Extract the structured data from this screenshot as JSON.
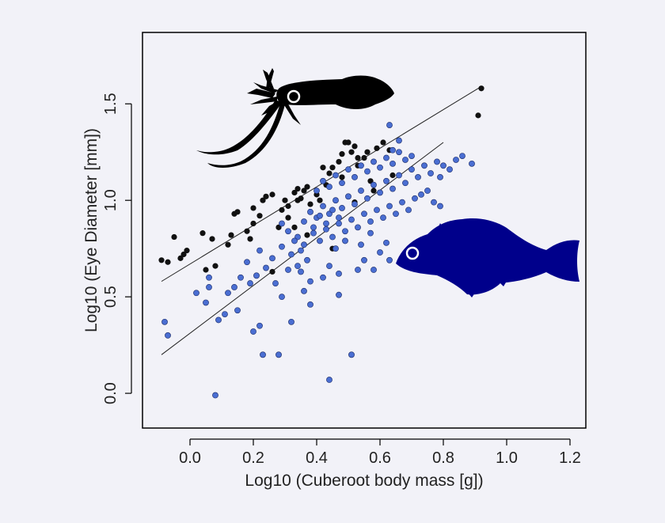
{
  "chart_data": {
    "type": "scatter",
    "xlabel": "Log10 (Cuberoot body mass [g])",
    "ylabel": "Log10 (Eye Diameter [mm])",
    "xlim": [
      -0.15,
      1.25
    ],
    "ylim": [
      -0.18,
      1.87
    ],
    "xticks": [
      0.0,
      0.2,
      0.4,
      0.6,
      0.8,
      1.0,
      1.2
    ],
    "xtick_labels": [
      "0.0",
      "0.2",
      "0.4",
      "0.6",
      "0.8",
      "1.0",
      "1.2"
    ],
    "yticks": [
      0.0,
      0.5,
      1.0,
      1.5
    ],
    "ytick_labels": [
      "0.0",
      "0.5",
      "1.0",
      "1.5"
    ],
    "grid": false,
    "series": [
      {
        "color": "#111111",
        "points": [
          [
            -0.09,
            0.69
          ],
          [
            -0.07,
            0.68
          ],
          [
            -0.05,
            0.81
          ],
          [
            -0.03,
            0.7
          ],
          [
            -0.02,
            0.72
          ],
          [
            -0.01,
            0.74
          ],
          [
            0.04,
            0.83
          ],
          [
            0.05,
            0.64
          ],
          [
            0.07,
            0.8
          ],
          [
            0.08,
            0.66
          ],
          [
            0.13,
            0.82
          ],
          [
            0.14,
            0.93
          ],
          [
            0.15,
            0.94
          ],
          [
            0.18,
            0.84
          ],
          [
            0.19,
            0.8
          ],
          [
            0.2,
            0.88
          ],
          [
            0.2,
            0.96
          ],
          [
            0.22,
            0.92
          ],
          [
            0.23,
            1.0
          ],
          [
            0.24,
            1.02
          ],
          [
            0.26,
            1.03
          ],
          [
            0.28,
            0.86
          ],
          [
            0.29,
            0.95
          ],
          [
            0.3,
            1.0
          ],
          [
            0.31,
            0.91
          ],
          [
            0.33,
            1.04
          ],
          [
            0.34,
            1.06
          ],
          [
            0.35,
            1.01
          ],
          [
            0.36,
            1.05
          ],
          [
            0.37,
            1.07
          ],
          [
            0.38,
            0.98
          ],
          [
            0.4,
            1.03
          ],
          [
            0.41,
            1.0
          ],
          [
            0.43,
            1.08
          ],
          [
            0.44,
            1.14
          ],
          [
            0.45,
            1.17
          ],
          [
            0.47,
            1.2
          ],
          [
            0.48,
            1.12
          ],
          [
            0.49,
            1.3
          ],
          [
            0.5,
            1.3
          ],
          [
            0.51,
            1.25
          ],
          [
            0.52,
            1.28
          ],
          [
            0.53,
            1.18
          ],
          [
            0.55,
            1.22
          ],
          [
            0.56,
            1.25
          ],
          [
            0.57,
            1.1
          ],
          [
            0.59,
            1.27
          ],
          [
            0.61,
            1.3
          ],
          [
            0.63,
            1.26
          ],
          [
            0.64,
            1.13
          ],
          [
            0.26,
            0.63
          ],
          [
            0.33,
            0.86
          ],
          [
            0.37,
            0.82
          ],
          [
            0.45,
            0.75
          ],
          [
            0.52,
            0.99
          ],
          [
            0.91,
            1.44
          ],
          [
            0.92,
            1.58
          ],
          [
            0.42,
            1.17
          ],
          [
            0.34,
            1.0
          ],
          [
            0.58,
            1.05
          ],
          [
            0.48,
            1.24
          ],
          [
            0.53,
            1.22
          ],
          [
            0.31,
            0.97
          ],
          [
            0.12,
            0.77
          ]
        ]
      },
      {
        "color": "#4a6ed2",
        "points": [
          [
            0.08,
            -0.01
          ],
          [
            0.44,
            0.07
          ],
          [
            0.23,
            0.2
          ],
          [
            0.28,
            0.2
          ],
          [
            0.51,
            0.2
          ],
          [
            -0.07,
            0.3
          ],
          [
            0.09,
            0.38
          ],
          [
            0.2,
            0.32
          ],
          [
            0.22,
            0.35
          ],
          [
            -0.08,
            0.37
          ],
          [
            0.11,
            0.41
          ],
          [
            0.15,
            0.43
          ],
          [
            0.32,
            0.37
          ],
          [
            0.38,
            0.46
          ],
          [
            0.29,
            0.5
          ],
          [
            0.36,
            0.53
          ],
          [
            0.47,
            0.51
          ],
          [
            0.05,
            0.47
          ],
          [
            0.06,
            0.55
          ],
          [
            0.12,
            0.52
          ],
          [
            0.16,
            0.6
          ],
          [
            0.21,
            0.61
          ],
          [
            0.27,
            0.57
          ],
          [
            0.31,
            0.64
          ],
          [
            0.35,
            0.63
          ],
          [
            0.38,
            0.58
          ],
          [
            0.42,
            0.6
          ],
          [
            0.44,
            0.66
          ],
          [
            0.47,
            0.62
          ],
          [
            0.53,
            0.64
          ],
          [
            0.55,
            0.69
          ],
          [
            0.58,
            0.64
          ],
          [
            0.6,
            0.73
          ],
          [
            0.62,
            0.78
          ],
          [
            0.63,
            0.69
          ],
          [
            0.18,
            0.68
          ],
          [
            0.22,
            0.74
          ],
          [
            0.26,
            0.7
          ],
          [
            0.29,
            0.76
          ],
          [
            0.32,
            0.72
          ],
          [
            0.34,
            0.81
          ],
          [
            0.36,
            0.77
          ],
          [
            0.39,
            0.83
          ],
          [
            0.41,
            0.79
          ],
          [
            0.43,
            0.85
          ],
          [
            0.45,
            0.81
          ],
          [
            0.47,
            0.88
          ],
          [
            0.49,
            0.84
          ],
          [
            0.51,
            0.9
          ],
          [
            0.53,
            0.86
          ],
          [
            0.55,
            0.93
          ],
          [
            0.57,
            0.89
          ],
          [
            0.59,
            0.95
          ],
          [
            0.61,
            0.91
          ],
          [
            0.63,
            0.97
          ],
          [
            0.65,
            0.93
          ],
          [
            0.67,
            0.99
          ],
          [
            0.69,
            0.95
          ],
          [
            0.71,
            1.01
          ],
          [
            0.73,
            1.03
          ],
          [
            0.36,
            0.89
          ],
          [
            0.38,
            0.94
          ],
          [
            0.4,
            0.91
          ],
          [
            0.42,
            0.97
          ],
          [
            0.44,
            0.93
          ],
          [
            0.46,
            1.0
          ],
          [
            0.48,
            0.96
          ],
          [
            0.5,
            1.02
          ],
          [
            0.52,
            0.98
          ],
          [
            0.54,
            1.05
          ],
          [
            0.56,
            1.01
          ],
          [
            0.58,
            1.08
          ],
          [
            0.6,
            1.04
          ],
          [
            0.62,
            1.1
          ],
          [
            0.64,
            1.06
          ],
          [
            0.66,
            1.13
          ],
          [
            0.68,
            1.09
          ],
          [
            0.7,
            1.16
          ],
          [
            0.72,
            1.12
          ],
          [
            0.74,
            1.18
          ],
          [
            0.4,
            1.05
          ],
          [
            0.42,
            1.1
          ],
          [
            0.44,
            1.07
          ],
          [
            0.46,
            1.13
          ],
          [
            0.48,
            1.09
          ],
          [
            0.5,
            1.16
          ],
          [
            0.52,
            1.12
          ],
          [
            0.54,
            1.18
          ],
          [
            0.56,
            1.15
          ],
          [
            0.58,
            1.2
          ],
          [
            0.6,
            1.17
          ],
          [
            0.62,
            1.22
          ],
          [
            0.64,
            1.19
          ],
          [
            0.66,
            1.25
          ],
          [
            0.68,
            1.21
          ],
          [
            0.63,
            1.39
          ],
          [
            0.66,
            1.31
          ],
          [
            0.64,
            1.26
          ],
          [
            0.7,
            1.23
          ],
          [
            0.78,
            1.2
          ],
          [
            0.8,
            1.18
          ],
          [
            0.82,
            1.16
          ],
          [
            0.84,
            1.21
          ],
          [
            0.86,
            1.23
          ],
          [
            0.89,
            1.19
          ],
          [
            0.79,
            1.12
          ],
          [
            0.76,
            1.14
          ],
          [
            0.75,
            1.05
          ],
          [
            0.77,
            0.99
          ],
          [
            0.79,
            0.97
          ],
          [
            0.29,
            0.88
          ],
          [
            0.31,
            0.84
          ],
          [
            0.33,
            0.79
          ],
          [
            0.35,
            0.74
          ],
          [
            0.37,
            0.69
          ],
          [
            0.39,
            0.86
          ],
          [
            0.41,
            0.92
          ],
          [
            0.43,
            0.88
          ],
          [
            0.45,
            0.95
          ],
          [
            0.47,
            0.91
          ],
          [
            0.14,
            0.55
          ],
          [
            0.19,
            0.57
          ],
          [
            0.24,
            0.65
          ],
          [
            0.02,
            0.52
          ],
          [
            0.06,
            0.6
          ],
          [
            0.34,
            0.66
          ],
          [
            0.46,
            0.75
          ],
          [
            0.49,
            0.79
          ],
          [
            0.54,
            0.77
          ],
          [
            0.57,
            0.83
          ]
        ]
      }
    ],
    "trend_lines": [
      {
        "color": "#222222",
        "x": [
          -0.09,
          0.92
        ],
        "y": [
          0.58,
          1.59
        ]
      },
      {
        "color": "#222222",
        "x": [
          -0.09,
          0.8
        ],
        "y": [
          0.2,
          1.3
        ]
      }
    ],
    "silhouettes": [
      {
        "icon": "squid-silhouette-icon",
        "color": "#000000"
      },
      {
        "icon": "fish-silhouette-icon",
        "color": "#00008b"
      }
    ]
  }
}
